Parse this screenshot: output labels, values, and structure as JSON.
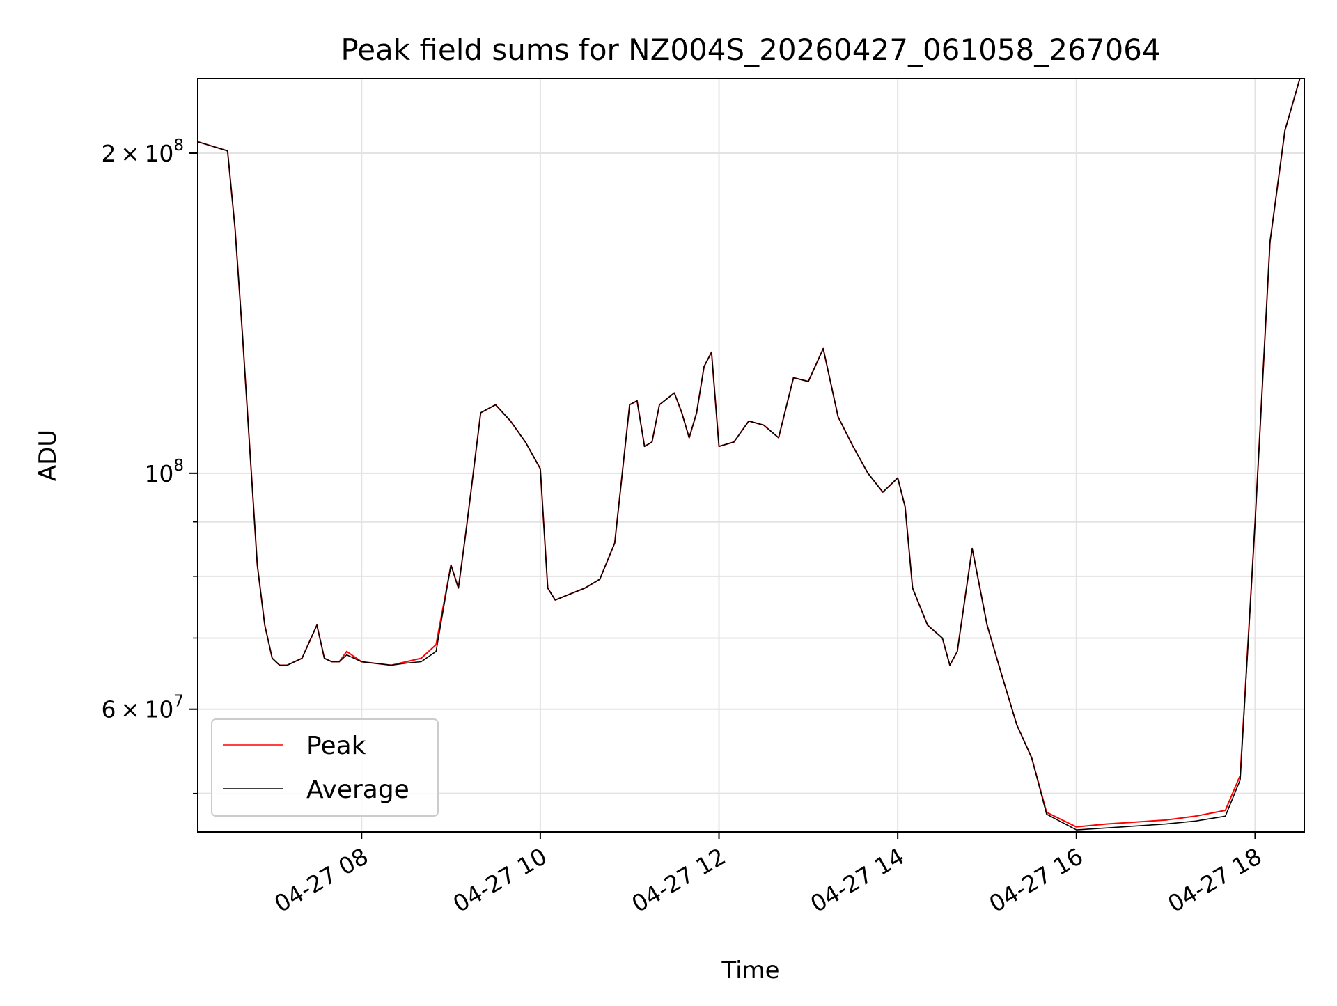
{
  "chart_data": {
    "type": "line",
    "title": "Peak field sums for NZ004S_20260427_061058_267064",
    "xlabel": "Time",
    "ylabel": "ADU",
    "y_scale": "log",
    "ylim": [
      46000000,
      235000000
    ],
    "xlim": [
      "2026-04-27 06:10",
      "2026-04-27 18:33"
    ],
    "grid": true,
    "legend_position": "lower-left",
    "x_ticks": [
      {
        "value": "2026-04-27 08:00",
        "label": "04-27 08"
      },
      {
        "value": "2026-04-27 10:00",
        "label": "04-27 10"
      },
      {
        "value": "2026-04-27 12:00",
        "label": "04-27 12"
      },
      {
        "value": "2026-04-27 14:00",
        "label": "04-27 14"
      },
      {
        "value": "2026-04-27 16:00",
        "label": "04-27 16"
      },
      {
        "value": "2026-04-27 18:00",
        "label": "04-27 18"
      }
    ],
    "y_ticks_major": [
      {
        "value": 60000000,
        "base": "6",
        "exponent": "7"
      },
      {
        "value": 100000000,
        "base": "10",
        "exponent": "8"
      },
      {
        "value": 200000000,
        "base": "2",
        "exponent": "8"
      }
    ],
    "y_ticks_minor": [
      50000000,
      70000000,
      80000000,
      90000000
    ],
    "times": [
      "06:10",
      "06:30",
      "06:35",
      "06:40",
      "06:45",
      "06:50",
      "06:55",
      "07:00",
      "07:05",
      "07:10",
      "07:20",
      "07:30",
      "07:35",
      "07:40",
      "07:45",
      "07:50",
      "08:00",
      "08:20",
      "08:30",
      "08:40",
      "08:50",
      "09:00",
      "09:05",
      "09:10",
      "09:15",
      "09:20",
      "09:30",
      "09:40",
      "09:50",
      "10:00",
      "10:05",
      "10:10",
      "10:20",
      "10:30",
      "10:40",
      "10:50",
      "11:00",
      "11:05",
      "11:10",
      "11:15",
      "11:20",
      "11:30",
      "11:35",
      "11:40",
      "11:45",
      "11:50",
      "11:55",
      "12:00",
      "12:10",
      "12:20",
      "12:30",
      "12:40",
      "12:50",
      "13:00",
      "13:10",
      "13:20",
      "13:30",
      "13:40",
      "13:50",
      "14:00",
      "14:05",
      "14:10",
      "14:20",
      "14:30",
      "14:35",
      "14:40",
      "14:50",
      "15:00",
      "15:10",
      "15:20",
      "15:30",
      "15:40",
      "16:00",
      "16:20",
      "16:40",
      "17:00",
      "17:20",
      "17:40",
      "17:50",
      "18:00",
      "18:10",
      "18:20",
      "18:30"
    ],
    "series": [
      {
        "name": "Peak",
        "color": "#ff0000",
        "values": [
          205000000,
          201000000,
          170000000,
          135000000,
          105000000,
          82000000,
          72000000,
          67000000,
          66000000,
          66000000,
          67000000,
          72000000,
          67000000,
          66500000,
          66500000,
          68000000,
          66500000,
          66000000,
          66500000,
          67000000,
          69000000,
          82000000,
          78000000,
          88000000,
          100000000,
          114000000,
          116000000,
          112000000,
          107000000,
          101000000,
          78000000,
          76000000,
          77000000,
          78000000,
          79500000,
          86000000,
          116000000,
          117000000,
          106000000,
          107000000,
          116000000,
          119000000,
          114000000,
          108000000,
          114000000,
          126000000,
          130000000,
          106000000,
          107000000,
          112000000,
          111000000,
          108000000,
          123000000,
          122000000,
          131000000,
          113000000,
          106000000,
          100000000,
          96000000,
          99000000,
          93000000,
          78000000,
          72000000,
          70000000,
          66000000,
          68000000,
          85000000,
          72000000,
          64500000,
          58000000,
          54000000,
          48000000,
          46500000,
          46800000,
          47000000,
          47200000,
          47600000,
          48200000,
          52000000,
          90000000,
          165000000,
          210000000,
          235000000
        ]
      },
      {
        "name": "Average",
        "color": "#000000",
        "values": [
          205000000,
          201000000,
          170000000,
          135000000,
          105000000,
          82000000,
          72000000,
          67000000,
          66000000,
          66000000,
          67000000,
          72000000,
          67000000,
          66500000,
          66500000,
          67500000,
          66500000,
          66000000,
          66300000,
          66500000,
          68000000,
          82000000,
          78000000,
          88000000,
          100000000,
          114000000,
          116000000,
          112000000,
          107000000,
          101000000,
          78000000,
          76000000,
          77000000,
          78000000,
          79500000,
          86000000,
          116000000,
          117000000,
          106000000,
          107000000,
          116000000,
          119000000,
          114000000,
          108000000,
          114000000,
          126000000,
          130000000,
          106000000,
          107000000,
          112000000,
          111000000,
          108000000,
          123000000,
          122000000,
          131000000,
          113000000,
          106000000,
          100000000,
          96000000,
          99000000,
          93000000,
          78000000,
          72000000,
          70000000,
          66000000,
          68000000,
          85000000,
          72000000,
          64500000,
          58000000,
          54000000,
          47800000,
          46200000,
          46400000,
          46600000,
          46800000,
          47100000,
          47600000,
          51500000,
          90000000,
          165000000,
          210000000,
          235000000
        ]
      }
    ]
  }
}
